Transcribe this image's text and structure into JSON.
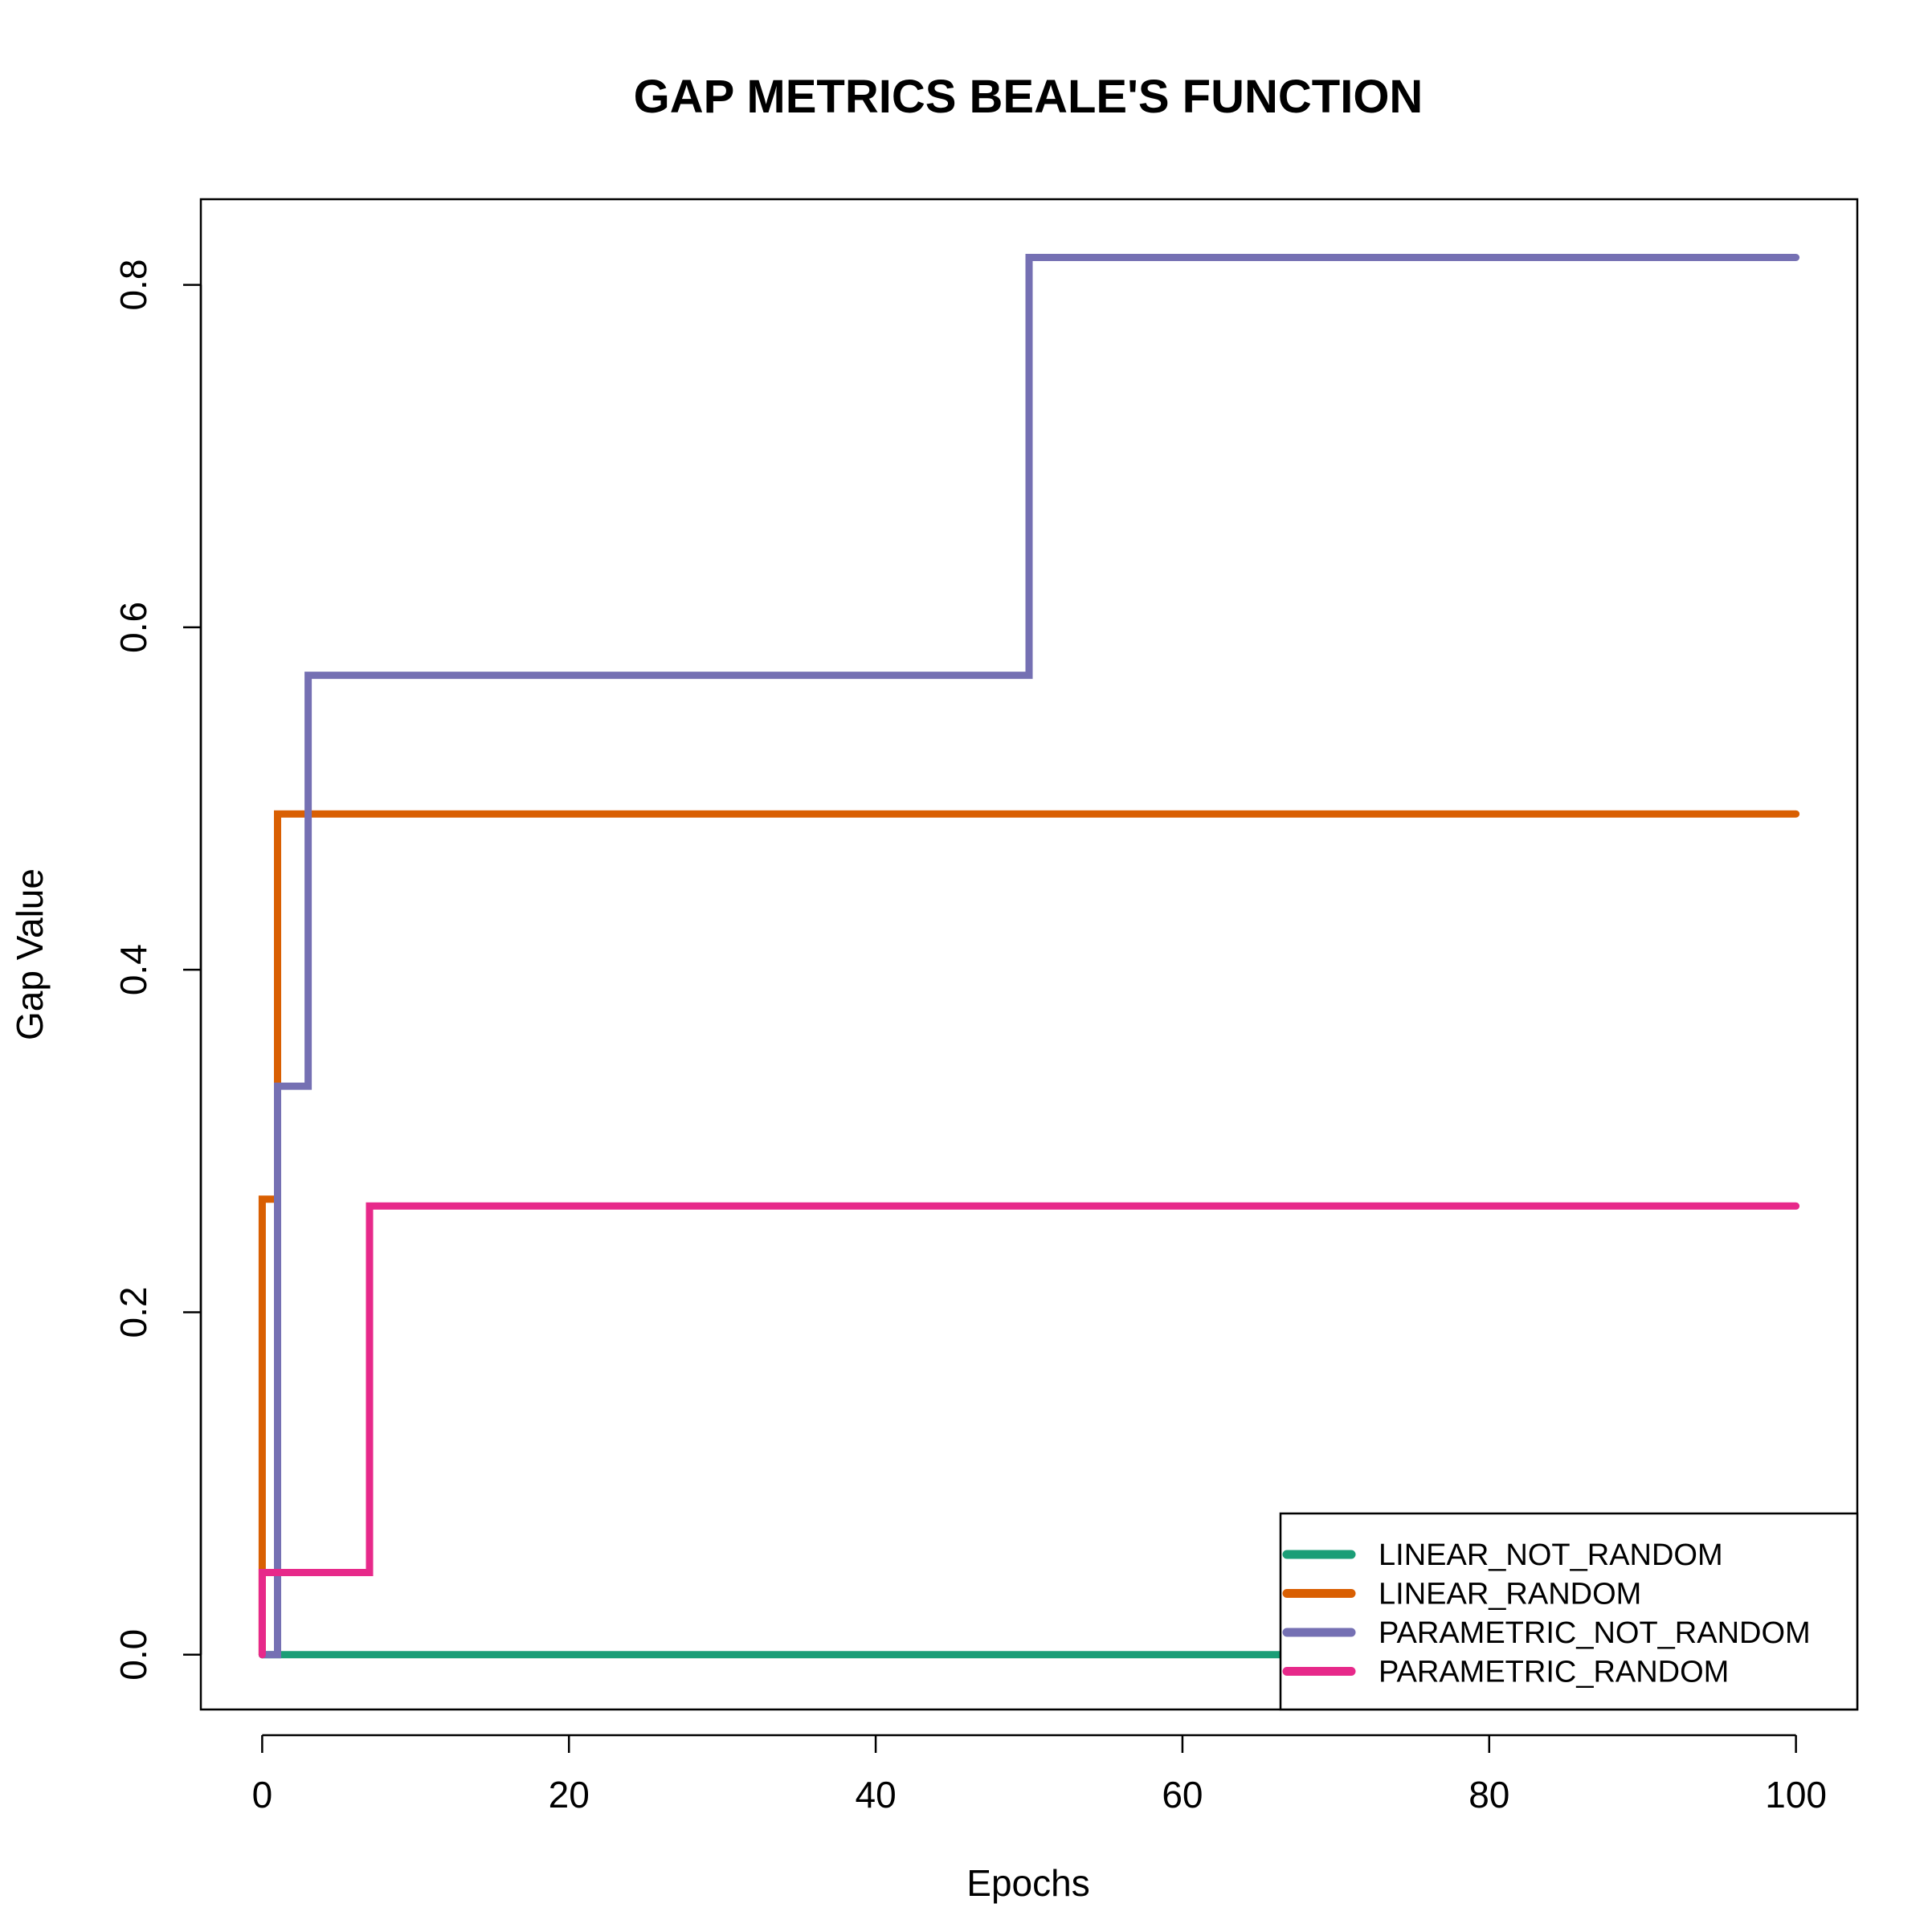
{
  "chart_data": {
    "type": "line",
    "step": true,
    "title": "GAP METRICS BEALE'S FUNCTION",
    "xlabel": "Epochs",
    "ylabel": "Gap Value",
    "xlim": [
      -4,
      104
    ],
    "ylim": [
      -0.032,
      0.85
    ],
    "xticks": [
      "0",
      "20",
      "40",
      "60",
      "80",
      "100"
    ],
    "xtick_values": [
      0,
      20,
      40,
      60,
      80,
      100
    ],
    "yticks": [
      "0.0",
      "0.2",
      "0.4",
      "0.6",
      "0.8"
    ],
    "ytick_values": [
      0.0,
      0.2,
      0.4,
      0.6,
      0.8
    ],
    "grid": false,
    "legend_position": "bottom-right",
    "series": [
      {
        "name": "LINEAR_NOT_RANDOM",
        "color": "#1b9e77",
        "points": [
          [
            0,
            0.0
          ],
          [
            100,
            0.0
          ]
        ]
      },
      {
        "name": "LINEAR_RANDOM",
        "color": "#d95f02",
        "points": [
          [
            0,
            0.0
          ],
          [
            0,
            0.266
          ],
          [
            1,
            0.266
          ],
          [
            1,
            0.491
          ],
          [
            100,
            0.491
          ]
        ]
      },
      {
        "name": "PARAMETRIC_NOT_RANDOM",
        "color": "#7570b3",
        "points": [
          [
            0,
            0.0
          ],
          [
            1,
            0.0
          ],
          [
            1,
            0.332
          ],
          [
            3,
            0.332
          ],
          [
            3,
            0.572
          ],
          [
            50,
            0.572
          ],
          [
            50,
            0.816
          ],
          [
            100,
            0.816
          ]
        ]
      },
      {
        "name": "PARAMETRIC_RANDOM",
        "color": "#e7298a",
        "points": [
          [
            0,
            0.0
          ],
          [
            0,
            0.048
          ],
          [
            7,
            0.048
          ],
          [
            7,
            0.262
          ],
          [
            100,
            0.262
          ]
        ]
      }
    ]
  }
}
